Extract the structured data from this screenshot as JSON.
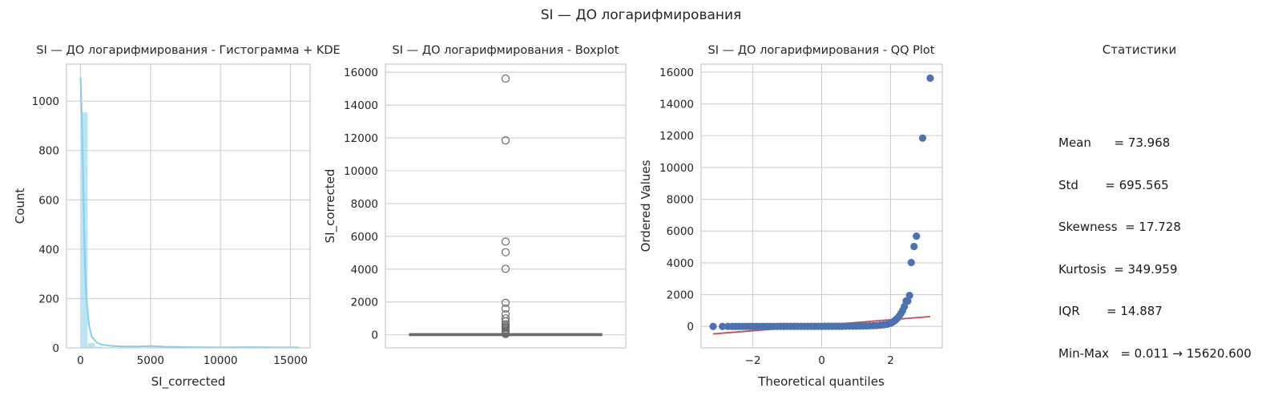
{
  "figure": {
    "suptitle": "SI — ДО логарифмирования"
  },
  "stats_panel": {
    "title": "Статистики",
    "lines": [
      "Mean      = 73.968",
      "Std       = 695.565",
      "Skewness  = 17.728",
      "Kurtosis  = 349.959",
      "IQR       = 14.887",
      "Min-Max   = 0.011 → 15620.600"
    ]
  },
  "colors": {
    "hist": "#87ceeb",
    "kde": "#87ceeb",
    "box_line": "#6b6b6b",
    "qq_points": "#4c72b0",
    "qq_line": "#c44e52",
    "grid": "#cfcfcf",
    "frame": "#c8c8c8"
  },
  "chart_data": [
    {
      "type": "histogram",
      "title": "SI — ДО логарифмирования - Гистограмма + KDE",
      "xlabel": "SI_corrected",
      "ylabel": "Count",
      "xlim": [
        -1000,
        16400
      ],
      "ylim": [
        0,
        1150
      ],
      "xticks": [
        0,
        5000,
        10000,
        15000
      ],
      "xtick_labels": [
        "0",
        "5000",
        "10000",
        "15000"
      ],
      "yticks": [
        0,
        200,
        400,
        600,
        800,
        1000
      ],
      "ytick_labels": [
        "0",
        "200",
        "400",
        "600",
        "800",
        "1000"
      ],
      "grid": true,
      "bin_width": 520,
      "bins": [
        {
          "x": 0,
          "count": 955
        },
        {
          "x": 520,
          "count": 20
        },
        {
          "x": 1040,
          "count": 6
        },
        {
          "x": 1560,
          "count": 3
        },
        {
          "x": 2080,
          "count": 1
        },
        {
          "x": 3900,
          "count": 1
        },
        {
          "x": 4940,
          "count": 1
        },
        {
          "x": 5460,
          "count": 1
        },
        {
          "x": 11700,
          "count": 1
        },
        {
          "x": 15600,
          "count": 1
        }
      ],
      "kde": {
        "x": [
          0,
          100,
          200,
          300,
          400,
          600,
          800,
          1200,
          1600,
          2200,
          3000,
          4000,
          5000,
          6000,
          8000,
          10000,
          12000,
          14000,
          15600
        ],
        "y": [
          1095,
          940,
          640,
          380,
          215,
          95,
          45,
          20,
          12,
          8,
          6,
          6,
          7,
          5,
          3,
          2,
          3,
          2,
          2
        ]
      }
    },
    {
      "type": "boxplot",
      "title": "SI — ДО логарифмирования - Boxplot",
      "xlabel": "",
      "ylabel": "SI_corrected",
      "ylim": [
        -800,
        16500
      ],
      "yticks": [
        0,
        2000,
        4000,
        6000,
        8000,
        10000,
        12000,
        14000,
        16000
      ],
      "ytick_labels": [
        "0",
        "2000",
        "4000",
        "6000",
        "8000",
        "10000",
        "12000",
        "14000",
        "16000"
      ],
      "grid": true,
      "box": {
        "q1": 2,
        "median": 6,
        "q3": 17,
        "whisker_low": 0.011,
        "whisker_high": 40
      },
      "outliers": [
        15620.6,
        11850,
        5680,
        5030,
        4020,
        1950,
        1600,
        1250,
        1000,
        820,
        650,
        540,
        460,
        400,
        320,
        260,
        200,
        150,
        110,
        80,
        60,
        45
      ]
    },
    {
      "type": "scatter",
      "title": "SI — ДО логарифмирования - QQ Plot",
      "xlabel": "Theoretical quantiles",
      "ylabel": "Ordered Values",
      "xlim": [
        -3.5,
        3.5
      ],
      "ylim": [
        -1350,
        16500
      ],
      "xticks": [
        -2,
        0,
        2
      ],
      "xtick_labels": [
        "−2",
        "0",
        "2"
      ],
      "yticks": [
        0,
        2000,
        4000,
        6000,
        8000,
        10000,
        12000,
        14000,
        16000
      ],
      "ytick_labels": [
        "0",
        "2000",
        "4000",
        "6000",
        "8000",
        "10000",
        "12000",
        "14000",
        "16000"
      ],
      "grid": true,
      "fit_line": {
        "x": [
          -3.15,
          3.15
        ],
        "y": [
          -470,
          620
        ]
      },
      "points": {
        "x": [
          -3.15,
          -2.88,
          -2.72,
          -2.6,
          -2.5,
          -2.4,
          -2.3,
          -2.2,
          -2.1,
          -2.0,
          -1.9,
          -1.8,
          -1.7,
          -1.6,
          -1.5,
          -1.4,
          -1.3,
          -1.2,
          -1.1,
          -1.0,
          -0.9,
          -0.8,
          -0.7,
          -0.6,
          -0.5,
          -0.4,
          -0.3,
          -0.2,
          -0.1,
          0.0,
          0.1,
          0.2,
          0.3,
          0.4,
          0.5,
          0.6,
          0.7,
          0.8,
          0.9,
          1.0,
          1.1,
          1.2,
          1.3,
          1.4,
          1.5,
          1.6,
          1.7,
          1.8,
          1.9,
          2.0,
          2.05,
          2.1,
          2.15,
          2.2,
          2.25,
          2.3,
          2.35,
          2.4,
          2.45,
          2.5,
          2.55,
          2.6,
          2.68,
          2.75,
          2.93,
          3.15
        ],
        "y": [
          0,
          1,
          1,
          1,
          1,
          1,
          1,
          2,
          2,
          2,
          2,
          2,
          2,
          3,
          3,
          3,
          3,
          4,
          4,
          4,
          5,
          5,
          5,
          6,
          6,
          7,
          7,
          8,
          8,
          9,
          10,
          10,
          11,
          12,
          13,
          14,
          15,
          17,
          19,
          21,
          24,
          28,
          33,
          40,
          50,
          62,
          80,
          105,
          140,
          200,
          260,
          330,
          420,
          520,
          650,
          820,
          1000,
          1250,
          1600,
          1600,
          1950,
          4020,
          5030,
          5680,
          11850,
          15620.6
        ]
      }
    }
  ]
}
